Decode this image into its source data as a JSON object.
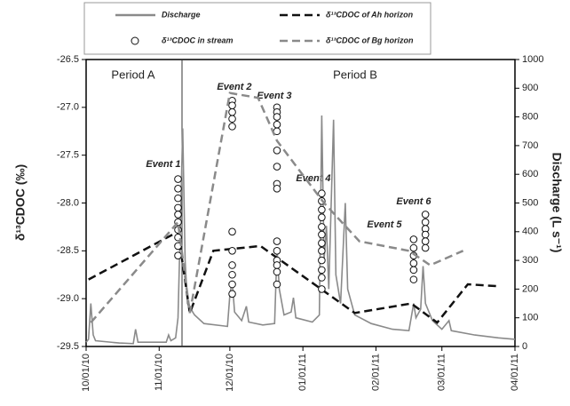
{
  "chart_data": {
    "type": "line",
    "y_label": "δ¹³CDOC (‰)",
    "y2_label": "Discharge (L s⁻¹)",
    "annotations": [
      "Period A",
      "Period B",
      "Event 1",
      "Event 2",
      "Event 3",
      "Event 4",
      "Event 5",
      "Event 6"
    ],
    "xlim": [
      "2010-10-01",
      "2011-04-01"
    ],
    "xticks": [
      {
        "value": "2010-10-01",
        "label": "10/01/10"
      },
      {
        "value": "2010-11-01",
        "label": "11/01/10"
      },
      {
        "value": "2010-12-01",
        "label": "12/01/10"
      },
      {
        "value": "2011-01-01",
        "label": "01/01/11"
      },
      {
        "value": "2011-02-01",
        "label": "02/01/11"
      },
      {
        "value": "2011-03-01",
        "label": "03/01/11"
      },
      {
        "value": "2011-04-01",
        "label": "04/01/11"
      }
    ],
    "ylim": [
      -29.5,
      -26.5
    ],
    "yticks": [
      -29.5,
      {
        "value": -29.0,
        "label": "-29.0"
      },
      -28.5,
      {
        "value": -28.0,
        "label": "-28.0"
      },
      -27.5,
      {
        "value": -27.0,
        "label": "-27.0"
      },
      -26.5
    ],
    "y2lim": [
      0,
      1000
    ],
    "y2ticks": [
      0,
      100,
      200,
      300,
      400,
      500,
      600,
      700,
      800,
      900,
      1000
    ],
    "series": [
      {
        "name": "Discharge",
        "color": "#8a8a8a",
        "axis": "y2",
        "line": "solid",
        "marker": "none",
        "x": [
          "2010-10-01",
          "2010-10-02",
          "2010-10-03",
          "2010-10-04",
          "2010-10-05",
          "2010-10-15",
          "2010-10-21",
          "2010-10-22",
          "2010-10-23",
          "2010-11-04",
          "2010-11-05",
          "2010-11-06",
          "2010-11-08",
          "2010-11-09",
          "2010-11-10",
          "2010-11-11",
          "2010-11-12",
          "2010-11-13",
          "2010-11-16",
          "2010-11-20",
          "2010-11-30",
          "2010-12-01",
          "2010-12-02",
          "2010-12-03",
          "2010-12-06",
          "2010-12-08",
          "2010-12-09",
          "2010-12-15",
          "2010-12-20",
          "2010-12-21",
          "2010-12-22",
          "2010-12-24",
          "2010-12-27",
          "2010-12-28",
          "2010-12-29",
          "2011-01-05",
          "2011-01-08",
          "2011-01-09",
          "2011-01-10",
          "2011-01-11",
          "2011-01-12",
          "2011-01-14",
          "2011-01-15",
          "2011-01-17",
          "2011-01-19",
          "2011-01-20",
          "2011-01-23",
          "2011-01-30",
          "2011-02-08",
          "2011-02-15",
          "2011-02-17",
          "2011-02-18",
          "2011-02-20",
          "2011-02-21",
          "2011-02-22",
          "2011-02-25",
          "2011-03-01",
          "2011-03-04",
          "2011-03-05",
          "2011-03-15",
          "2011-03-25",
          "2011-04-01"
        ],
        "values": [
          15,
          25,
          150,
          40,
          20,
          12,
          10,
          60,
          15,
          15,
          40,
          20,
          30,
          100,
          430,
          760,
          300,
          150,
          110,
          80,
          70,
          180,
          230,
          120,
          90,
          140,
          85,
          75,
          80,
          340,
          200,
          110,
          120,
          170,
          100,
          85,
          110,
          805,
          300,
          420,
          200,
          790,
          250,
          150,
          500,
          200,
          110,
          80,
          60,
          55,
          150,
          100,
          130,
          280,
          150,
          90,
          60,
          90,
          55,
          40,
          30,
          25
        ]
      },
      {
        "name": "δ¹³CDOC of Ah horizon",
        "color": "#111111",
        "axis": "y",
        "line": "dashed",
        "marker": "none",
        "x": [
          "2010-10-02",
          "2010-11-09",
          "2010-11-14",
          "2010-11-24",
          "2010-12-14",
          "2011-01-23",
          "2011-02-16",
          "2011-02-27",
          "2011-03-12",
          "2011-03-25"
        ],
        "values": [
          -28.8,
          -28.3,
          -29.15,
          -28.5,
          -28.45,
          -29.15,
          -29.05,
          -29.25,
          -28.85,
          -28.87
        ]
      },
      {
        "name": "δ¹³CDOC in stream",
        "color": "#111111",
        "axis": "y",
        "line": "none",
        "marker": "circle",
        "x": [
          "2010-11-09",
          "2010-11-09",
          "2010-11-09",
          "2010-11-09",
          "2010-11-09",
          "2010-11-09",
          "2010-11-09",
          "2010-11-09",
          "2010-11-09",
          "2010-11-09",
          "2010-12-02",
          "2010-12-02",
          "2010-12-02",
          "2010-12-02",
          "2010-12-02",
          "2010-12-02",
          "2010-12-02",
          "2010-12-02",
          "2010-12-02",
          "2010-12-02",
          "2010-12-02",
          "2010-12-21",
          "2010-12-21",
          "2010-12-21",
          "2010-12-21",
          "2010-12-21",
          "2010-12-21",
          "2010-12-21",
          "2010-12-21",
          "2010-12-21",
          "2010-12-21",
          "2010-12-21",
          "2010-12-21",
          "2010-12-21",
          "2010-12-21",
          "2010-12-21",
          "2011-01-09",
          "2011-01-09",
          "2011-01-09",
          "2011-01-09",
          "2011-01-09",
          "2011-01-09",
          "2011-01-09",
          "2011-01-09",
          "2011-01-09",
          "2011-01-09",
          "2011-01-09",
          "2011-01-09",
          "2011-02-17",
          "2011-02-17",
          "2011-02-17",
          "2011-02-17",
          "2011-02-17",
          "2011-02-17",
          "2011-02-22",
          "2011-02-22",
          "2011-02-22",
          "2011-02-22",
          "2011-02-22",
          "2011-02-22"
        ],
        "values": [
          -27.75,
          -27.85,
          -27.95,
          -28.05,
          -28.12,
          -28.2,
          -28.28,
          -28.36,
          -28.45,
          -28.55,
          -26.93,
          -26.98,
          -27.05,
          -27.12,
          -27.2,
          -28.3,
          -28.5,
          -28.65,
          -28.75,
          -28.85,
          -28.95,
          -27.0,
          -27.05,
          -27.1,
          -27.18,
          -27.25,
          -27.45,
          -27.62,
          -27.8,
          -27.85,
          -28.4,
          -28.5,
          -28.6,
          -28.65,
          -28.72,
          -28.85,
          -27.9,
          -27.98,
          -28.07,
          -28.15,
          -28.25,
          -28.33,
          -28.42,
          -28.5,
          -28.6,
          -28.7,
          -28.78,
          -28.9,
          -28.38,
          -28.47,
          -28.55,
          -28.63,
          -28.7,
          -28.8,
          -28.12,
          -28.2,
          -28.27,
          -28.33,
          -28.4,
          -28.47
        ]
      },
      {
        "name": "δ¹³CDOC of Bg horizon",
        "color": "#8a8a8a",
        "axis": "y",
        "line": "dashed",
        "marker": "none",
        "x": [
          "2010-10-03",
          "2010-11-09",
          "2010-11-14",
          "2010-12-01",
          "2010-12-13",
          "2010-12-21",
          "2011-01-10",
          "2011-01-25",
          "2011-02-15",
          "2011-02-24",
          "2011-03-10"
        ],
        "values": [
          -29.25,
          -28.2,
          -29.15,
          -26.85,
          -26.9,
          -27.35,
          -28.0,
          -28.4,
          -28.5,
          -28.65,
          -28.5
        ]
      }
    ]
  }
}
